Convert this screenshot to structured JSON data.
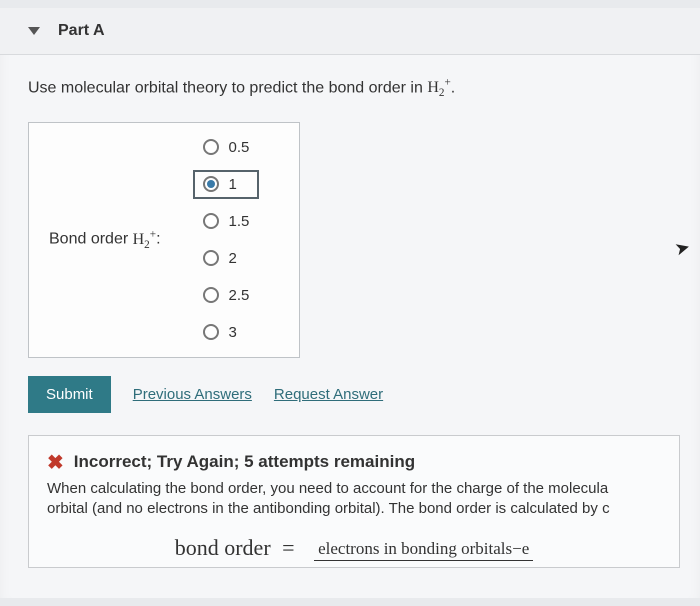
{
  "part": {
    "title": "Part A"
  },
  "question": {
    "prefix": "Use molecular orbital theory to predict the bond order in ",
    "molecule_base": "H",
    "molecule_sub": "2",
    "molecule_sup": "+",
    "suffix": "."
  },
  "answer_label": {
    "prefix": "Bond order ",
    "base": "H",
    "sub": "2",
    "sup": "+",
    "suffix": ":"
  },
  "options": [
    {
      "label": "0.5",
      "selected": false
    },
    {
      "label": "1",
      "selected": true
    },
    {
      "label": "1.5",
      "selected": false
    },
    {
      "label": "2",
      "selected": false
    },
    {
      "label": "2.5",
      "selected": false
    },
    {
      "label": "3",
      "selected": false
    }
  ],
  "actions": {
    "submit": "Submit",
    "previous": "Previous Answers",
    "request": "Request Answer"
  },
  "feedback": {
    "title": "Incorrect; Try Again; 5 attempts remaining",
    "body_line1": "When calculating the bond order, you need to account for the charge of the molecula",
    "body_line2": "orbital (and no electrons in the antibonding orbital). The bond order is calculated by c",
    "formula_lhs": "bond order",
    "formula_eq": "=",
    "formula_num": "electrons in bonding orbitals−e"
  },
  "colors": {
    "submit_bg": "#2f7a87",
    "link": "#2f6d7a",
    "error": "#c0392b",
    "box_border": "#bfc3c7"
  }
}
